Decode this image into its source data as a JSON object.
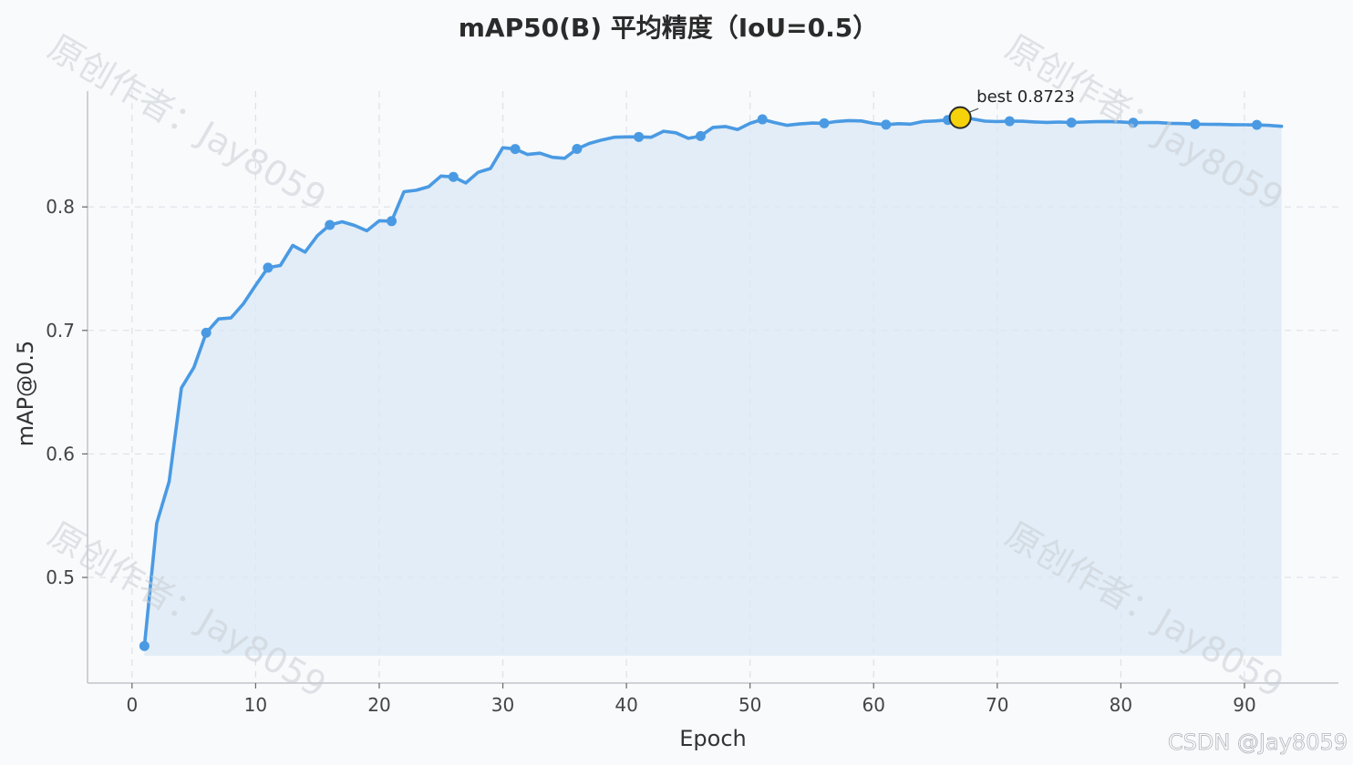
{
  "chart_data": {
    "type": "line",
    "title": "mAP50(B) 平均精度（IoU=0.5）",
    "xlabel": "Epoch",
    "ylabel": "mAP@0.5",
    "xlim": [
      -3.6,
      97.6
    ],
    "ylim": [
      0.4145,
      0.8938
    ],
    "x_ticks": [
      0,
      10,
      20,
      30,
      40,
      50,
      60,
      70,
      80,
      90
    ],
    "y_ticks": [
      0.5,
      0.6,
      0.7,
      0.8
    ],
    "x_tick_labels": [
      "0",
      "10",
      "20",
      "30",
      "40",
      "50",
      "60",
      "70",
      "80",
      "90"
    ],
    "y_tick_labels": [
      "0.5",
      "0.6",
      "0.7",
      "0.8"
    ],
    "grid": true,
    "fill_under_line": true,
    "marker_every": 5,
    "series": [
      {
        "color": "#4a9ae3",
        "x": [
          1,
          2,
          3,
          4,
          5,
          6,
          7,
          8,
          9,
          10,
          11,
          12,
          13,
          14,
          15,
          16,
          17,
          18,
          19,
          20,
          21,
          22,
          23,
          24,
          25,
          26,
          27,
          28,
          29,
          30,
          31,
          32,
          33,
          34,
          35,
          36,
          37,
          38,
          39,
          40,
          41,
          42,
          43,
          44,
          45,
          46,
          47,
          48,
          49,
          50,
          51,
          52,
          53,
          54,
          55,
          56,
          57,
          58,
          59,
          60,
          61,
          62,
          63,
          64,
          65,
          66,
          67,
          68,
          69,
          70,
          71,
          72,
          73,
          74,
          75,
          76,
          77,
          78,
          79,
          80,
          81,
          82,
          83,
          84,
          85,
          86,
          87,
          88,
          89,
          90,
          91,
          92,
          93
        ],
        "values": [
          0.4445,
          0.5439,
          0.5776,
          0.6535,
          0.6699,
          0.6981,
          0.7093,
          0.7101,
          0.7215,
          0.7365,
          0.7508,
          0.7526,
          0.7688,
          0.7634,
          0.7768,
          0.7854,
          0.788,
          0.785,
          0.7807,
          0.7888,
          0.7885,
          0.8123,
          0.8135,
          0.8164,
          0.825,
          0.8243,
          0.8194,
          0.828,
          0.8311,
          0.8479,
          0.8469,
          0.8425,
          0.8435,
          0.8402,
          0.8394,
          0.847,
          0.8514,
          0.8542,
          0.8564,
          0.8567,
          0.8567,
          0.8564,
          0.8613,
          0.86,
          0.8555,
          0.8574,
          0.8644,
          0.8651,
          0.8627,
          0.8677,
          0.8709,
          0.8683,
          0.8661,
          0.8672,
          0.8679,
          0.8677,
          0.8692,
          0.8699,
          0.8696,
          0.8676,
          0.8666,
          0.8674,
          0.867,
          0.8692,
          0.8696,
          0.8704,
          0.8723,
          0.8712,
          0.8695,
          0.8691,
          0.8694,
          0.8694,
          0.8688,
          0.8684,
          0.8687,
          0.8683,
          0.8687,
          0.869,
          0.8692,
          0.8688,
          0.8682,
          0.8683,
          0.8683,
          0.8677,
          0.8675,
          0.867,
          0.8669,
          0.8668,
          0.8666,
          0.8665,
          0.8664,
          0.866,
          0.8653
        ]
      }
    ],
    "best": {
      "x": 67,
      "y": 0.8723,
      "label": "best 0.8723",
      "color": "#f5d20a"
    }
  },
  "watermarks": [
    "原创作者：Jay8059",
    "原创作者：Jay8059",
    "原创作者：Jay8059",
    "原创作者：Jay8059"
  ],
  "credit": "CSDN @Jay8059"
}
